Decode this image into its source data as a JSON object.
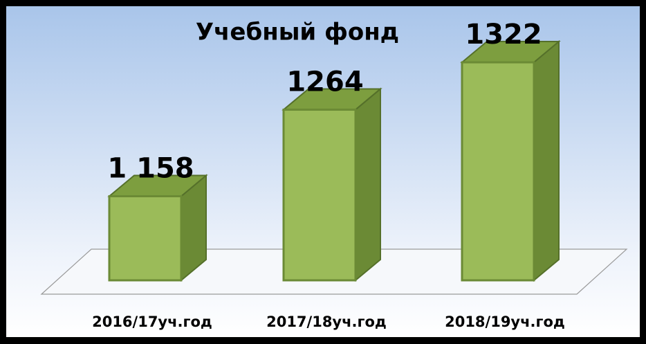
{
  "chart_data": {
    "type": "bar3d",
    "title": "Учебный фонд",
    "categories": [
      "2016/17уч.год",
      "2017/18уч.год",
      "2018/19уч.год"
    ],
    "values": [
      1158,
      1264,
      1322
    ],
    "value_labels": [
      "1 158",
      "1264",
      "1322"
    ],
    "color": "#9bbb59",
    "ylim": [
      1055,
      1350
    ]
  }
}
